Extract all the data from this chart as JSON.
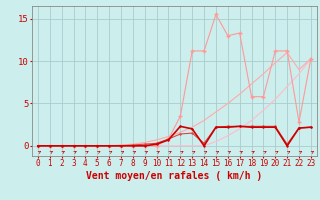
{
  "bg_color": "#cceeed",
  "grid_color": "#aacccc",
  "xlabel": "Vent moyen/en rafales ( km/h )",
  "xlim": [
    -0.5,
    23.5
  ],
  "ylim": [
    -1.2,
    16.5
  ],
  "yticks": [
    0,
    5,
    10,
    15
  ],
  "xticks": [
    0,
    1,
    2,
    3,
    4,
    5,
    6,
    7,
    8,
    9,
    10,
    11,
    12,
    13,
    14,
    15,
    16,
    17,
    18,
    19,
    20,
    21,
    22,
    23
  ],
  "line_steep_x": [
    0,
    1,
    2,
    3,
    4,
    5,
    6,
    7,
    8,
    9,
    10,
    11,
    12,
    13,
    14,
    15,
    16,
    17,
    18,
    19,
    20,
    21,
    22,
    23
  ],
  "line_steep_y": [
    0,
    0,
    0,
    0,
    0,
    0,
    0,
    0,
    0,
    0,
    0,
    0,
    0,
    0,
    0,
    0.5,
    1.2,
    2.0,
    3.0,
    4.2,
    5.5,
    7.0,
    8.5,
    10.3
  ],
  "line_steep_color": "#ffbbcc",
  "line_mid_x": [
    0,
    1,
    2,
    3,
    4,
    5,
    6,
    7,
    8,
    9,
    10,
    11,
    12,
    13,
    14,
    15,
    16,
    17,
    18,
    19,
    20,
    21,
    22,
    23
  ],
  "line_mid_y": [
    0,
    0,
    0,
    0,
    0,
    0,
    0,
    0.1,
    0.2,
    0.4,
    0.7,
    1.1,
    1.6,
    2.2,
    3.0,
    4.0,
    5.0,
    6.1,
    7.3,
    8.5,
    9.8,
    11.0,
    9.0,
    10.3
  ],
  "line_mid_color": "#ffaaaa",
  "line_jagged_x": [
    0,
    1,
    2,
    3,
    4,
    5,
    6,
    7,
    8,
    9,
    10,
    11,
    12,
    13,
    14,
    15,
    16,
    17,
    18,
    19,
    20,
    21,
    22,
    23
  ],
  "line_jagged_y": [
    0,
    0,
    0,
    0,
    0,
    0,
    0,
    0,
    0,
    0,
    0,
    0.8,
    3.5,
    11.2,
    11.2,
    15.5,
    13.0,
    13.3,
    5.8,
    5.8,
    11.2,
    11.2,
    2.8,
    10.3
  ],
  "line_jagged_color": "#ff9999",
  "line_flat2_x": [
    0,
    1,
    2,
    3,
    4,
    5,
    6,
    7,
    8,
    9,
    10,
    11,
    12,
    13,
    14,
    15,
    16,
    17,
    18,
    19,
    20,
    21,
    22,
    23
  ],
  "line_flat2_y": [
    0,
    0,
    0,
    0,
    0,
    0,
    0,
    0,
    0.1,
    0.2,
    0.3,
    0.8,
    1.4,
    1.5,
    0.3,
    2.2,
    2.3,
    2.3,
    2.3,
    2.3,
    2.3,
    0.2,
    2.1,
    2.2
  ],
  "line_flat2_color": "#dd4444",
  "line_flat1_x": [
    0,
    1,
    2,
    3,
    4,
    5,
    6,
    7,
    8,
    9,
    10,
    11,
    12,
    13,
    14,
    15,
    16,
    17,
    18,
    19,
    20,
    21,
    22,
    23
  ],
  "line_flat1_y": [
    0,
    0,
    0,
    0,
    0,
    0,
    0,
    0,
    0,
    0,
    0.2,
    0.7,
    2.3,
    2.0,
    0.0,
    2.2,
    2.2,
    2.3,
    2.2,
    2.2,
    2.2,
    0.0,
    2.1,
    2.2
  ],
  "line_flat1_color": "#cc0000",
  "xlabel_fontsize": 7,
  "tick_fontsize": 5.5,
  "ytick_fontsize": 6.5
}
